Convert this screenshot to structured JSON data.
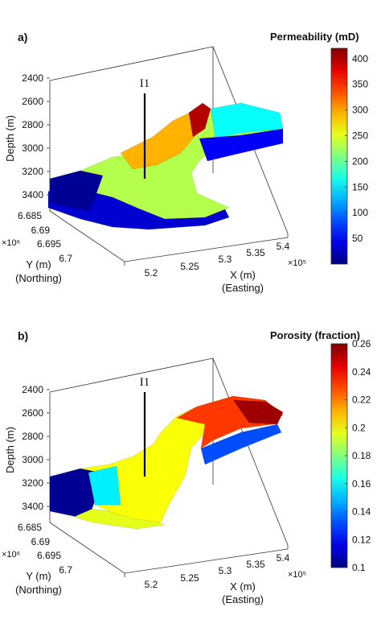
{
  "charts": [
    {
      "id": "a",
      "panel_label": "a)",
      "colorbar_title": "Permeability (mD)",
      "colorbar_ticks": [
        "400",
        "350",
        "300",
        "250",
        "200",
        "150",
        "100",
        "50"
      ],
      "colorbar_range": [
        0,
        420
      ],
      "well_label": "I1",
      "zlabel": "Depth (m)",
      "z_ticks": [
        "2400",
        "2600",
        "2800",
        "3000",
        "3200",
        "3400"
      ],
      "y_ticks": [
        "6.685",
        "6.69",
        "6.695",
        "6.7"
      ],
      "y_multiplier": "×10⁶",
      "ylabel": "Y (m)",
      "ylabel2": "(Northing)",
      "x_ticks": [
        "5.2",
        "5.25",
        "5.3",
        "5.35",
        "5.4"
      ],
      "x_multiplier": "×10⁵",
      "xlabel": "X (m)",
      "xlabel2": "(Easting)"
    },
    {
      "id": "b",
      "panel_label": "b)",
      "colorbar_title": "Porosity (fraction)",
      "colorbar_ticks": [
        "0.26",
        "0.24",
        "0.22",
        "0.2",
        "0.18",
        "0.16",
        "0.14",
        "0.12",
        "0.1"
      ],
      "colorbar_range": [
        0.1,
        0.26
      ],
      "well_label": "I1",
      "zlabel": "Depth (m)",
      "z_ticks": [
        "2400",
        "2600",
        "2800",
        "3000",
        "3200",
        "3400"
      ],
      "y_ticks": [
        "6.685",
        "6.69",
        "6.695",
        "6.7"
      ],
      "y_multiplier": "×10⁶",
      "ylabel": "Y (m)",
      "ylabel2": "(Northing)",
      "x_ticks": [
        "5.2",
        "5.25",
        "5.3",
        "5.35",
        "5.4"
      ],
      "x_multiplier": "×10⁵",
      "xlabel": "X (m)",
      "xlabel2": "(Easting)"
    }
  ],
  "chart_data": [
    {
      "type": "surface3d",
      "title": "Permeability (mD)",
      "colorbar": {
        "min": 0,
        "max": 420,
        "colormap": "jet"
      },
      "z_range": [
        2400,
        3450
      ],
      "y_range_e6": [
        6.68,
        6.7
      ],
      "x_range_e5": [
        5.18,
        5.4
      ],
      "well": "I1"
    },
    {
      "type": "surface3d",
      "title": "Porosity (fraction)",
      "colorbar": {
        "min": 0.1,
        "max": 0.26,
        "colormap": "jet"
      },
      "z_range": [
        2400,
        3450
      ],
      "y_range_e6": [
        6.68,
        6.7
      ],
      "x_range_e5": [
        5.18,
        5.4
      ],
      "well": "I1"
    }
  ]
}
